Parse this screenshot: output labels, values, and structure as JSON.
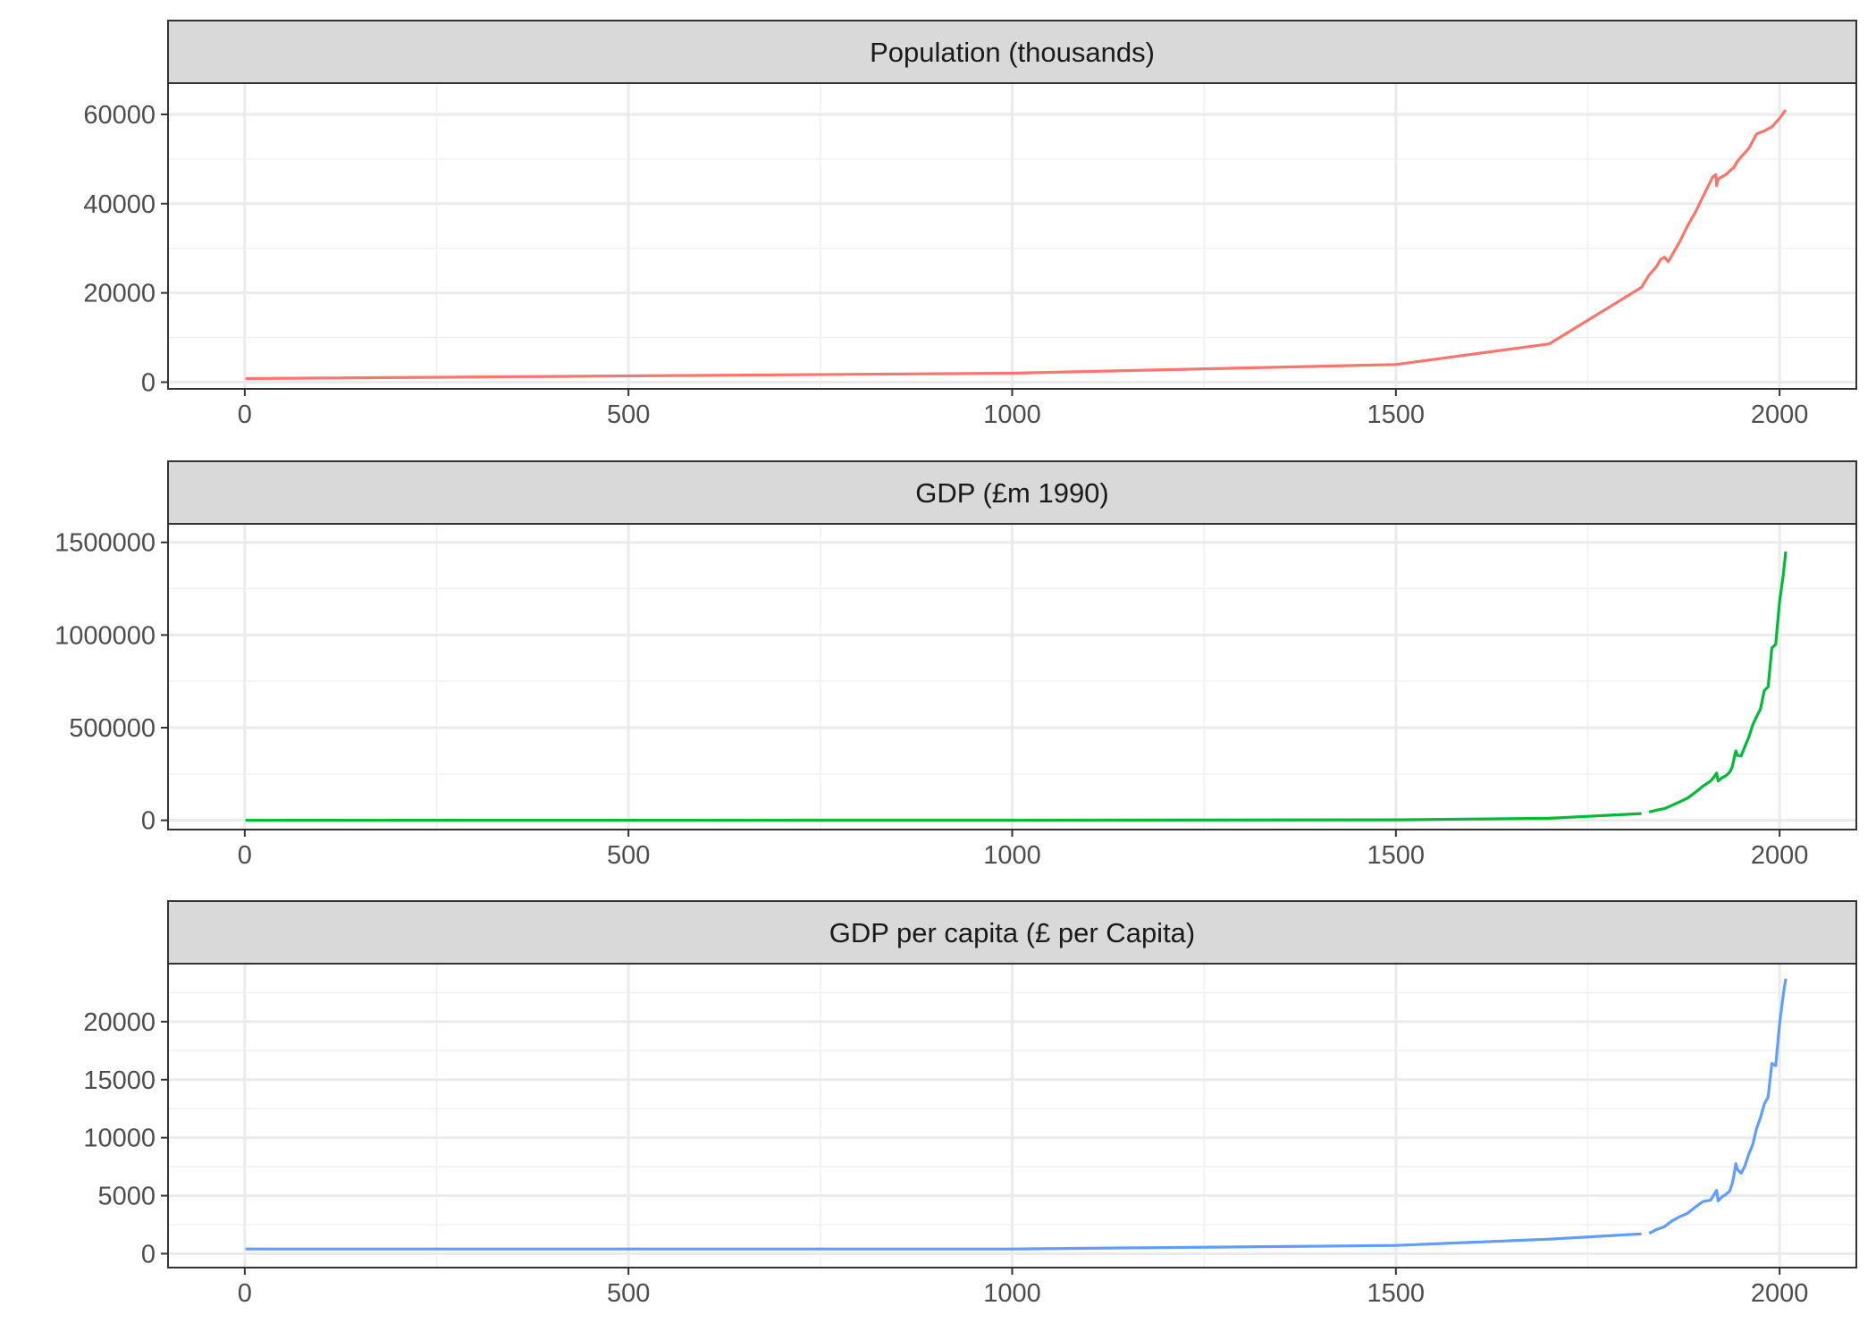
{
  "chart_data": [
    {
      "type": "line",
      "title": "Population (thousands)",
      "color": "#F8766D",
      "xlim": [
        -100,
        2100
      ],
      "ylim": [
        -1500,
        67000
      ],
      "x_ticks": [
        "0",
        "500",
        "1000",
        "1500",
        "2000"
      ],
      "y_ticks": [
        "0",
        "20000",
        "40000",
        "60000"
      ],
      "segments": [
        {
          "x": [
            1,
            1000,
            1500,
            1700,
            1820,
            1830,
            1840,
            1845,
            1850,
            1855,
            1860,
            1870,
            1880,
            1890,
            1900,
            1910,
            1913,
            1917,
            1918,
            1920,
            1930,
            1938,
            1940,
            1945,
            1950,
            1960,
            1970,
            1980,
            1990,
            2000,
            2008
          ],
          "y": [
            800,
            2000,
            3942,
            8565,
            21239,
            24000,
            26000,
            27500,
            28000,
            27000,
            28500,
            31500,
            35000,
            38000,
            41500,
            45000,
            46000,
            46500,
            44000,
            45500,
            46500,
            47800,
            48000,
            49500,
            50500,
            52400,
            55600,
            56300,
            57200,
            59100,
            61000
          ]
        }
      ]
    },
    {
      "type": "line",
      "title": "GDP (£m 1990)",
      "color": "#00BA38",
      "xlim": [
        -100,
        2100
      ],
      "ylim": [
        -50000,
        1600000
      ],
      "x_ticks": [
        "0",
        "500",
        "1000",
        "1500",
        "2000"
      ],
      "y_ticks": [
        "0",
        "500000",
        "1000000",
        "1500000"
      ],
      "segments": [
        {
          "x": [
            1,
            1000,
            1500,
            1700,
            1820
          ],
          "y": [
            320,
            800,
            2815,
            10709,
            36232
          ]
        },
        {
          "x": [
            1830,
            1840,
            1850,
            1860,
            1870,
            1880,
            1890,
            1900,
            1910,
            1913,
            1918,
            1920,
            1925,
            1930,
            1935,
            1938,
            1940,
            1943,
            1945,
            1950,
            1955,
            1960,
            1965,
            1970,
            1975,
            1980,
            1985,
            1990,
            1995,
            2000,
            2005,
            2008
          ],
          "y": [
            45000,
            55000,
            63000,
            81000,
            100000,
            120000,
            150000,
            184000,
            212000,
            225000,
            255000,
            212000,
            230000,
            240000,
            260000,
            285000,
            320000,
            375000,
            350000,
            348000,
            400000,
            450000,
            515000,
            560000,
            600000,
            700000,
            720000,
            930000,
            950000,
            1180000,
            1330000,
            1450000
          ]
        }
      ]
    },
    {
      "type": "line",
      "title": "GDP per capita (£ per Capita)",
      "color": "#619CFF",
      "xlim": [
        -100,
        2100
      ],
      "ylim": [
        -1200,
        25000
      ],
      "x_ticks": [
        "0",
        "500",
        "1000",
        "1500",
        "2000"
      ],
      "y_ticks": [
        "0",
        "5000",
        "10000",
        "15000",
        "20000"
      ],
      "segments": [
        {
          "x": [
            1,
            1000,
            1500,
            1700,
            1820
          ],
          "y": [
            400,
            400,
            714,
            1250,
            1706
          ]
        },
        {
          "x": [
            1830,
            1840,
            1850,
            1860,
            1870,
            1880,
            1890,
            1900,
            1910,
            1913,
            1918,
            1920,
            1925,
            1930,
            1935,
            1938,
            1940,
            1943,
            1945,
            1950,
            1955,
            1960,
            1965,
            1970,
            1975,
            1980,
            1985,
            1990,
            1995,
            2000,
            2005,
            2008
          ],
          "y": [
            1750,
            2100,
            2330,
            2830,
            3190,
            3480,
            4010,
            4490,
            4610,
            4920,
            5460,
            4550,
            4900,
            5100,
            5400,
            5980,
            6540,
            7760,
            7260,
            6940,
            7600,
            8600,
            9400,
            10800,
            11700,
            12900,
            13500,
            16400,
            16200,
            19800,
            22400,
            23700
          ]
        }
      ]
    }
  ]
}
